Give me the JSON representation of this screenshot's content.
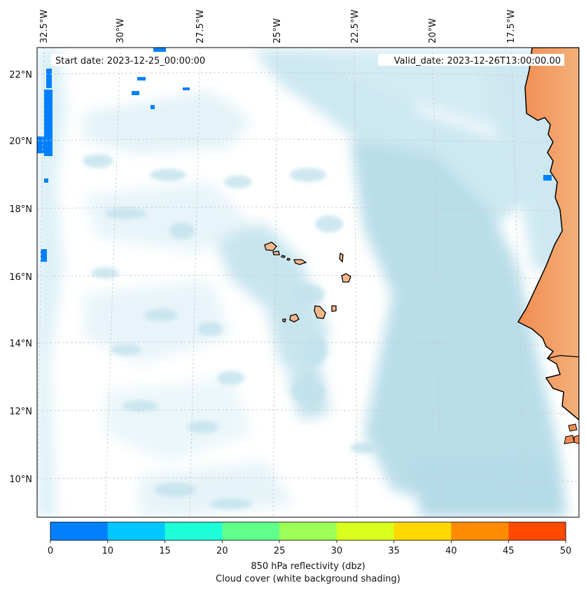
{
  "map": {
    "start_date_text": "Start date: 2023-12-25_00:00:00",
    "valid_date_text": "Valid_date: 2023-12-26T13:00:00.00",
    "lon_labels": [
      "32.5°W",
      "30°W",
      "27.5°W",
      "25°W",
      "22.5°W",
      "20°W",
      "17.5°W"
    ],
    "lat_labels": [
      "22°N",
      "20°N",
      "18°N",
      "16°N",
      "14°N",
      "12°N",
      "10°N"
    ],
    "colors": {
      "cloud": "#add8e6",
      "land": "#f4a460",
      "island_fill": "#f2b88a",
      "coast": "#000000",
      "grid": "#c8c8c8"
    }
  },
  "colorbar": {
    "ticks": [
      "0",
      "10",
      "15",
      "20",
      "25",
      "30",
      "35",
      "40",
      "45",
      "50"
    ],
    "colors": [
      "#0080ff",
      "#00c8ff",
      "#1effd9",
      "#5fff8a",
      "#9cff55",
      "#d9ff1e",
      "#ffd800",
      "#ff8c00",
      "#ff4a00"
    ],
    "label_line1": "850 hPa reflectivity (dbz)",
    "label_line2": "Cloud cover (white background shading)"
  }
}
